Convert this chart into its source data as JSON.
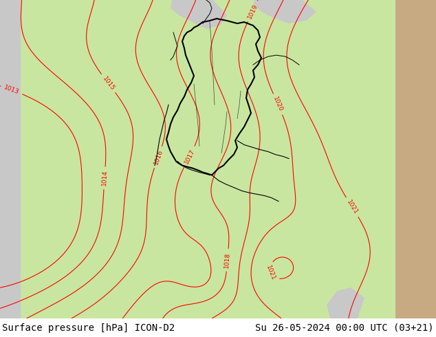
{
  "title_left": "Surface pressure [hPa] ICON-D2",
  "title_right": "Su 26-05-2024 00:00 UTC (03+21)",
  "bg_green": "#c8e6a0",
  "bg_gray": "#c8c8c8",
  "bg_tan": "#c8aa82",
  "bg_white": "#ffffff",
  "contour_color": "#ff0000",
  "border_color": "#000000",
  "text_color": "#000000",
  "water_color": "#b8b8c8",
  "figsize": [
    6.34,
    4.9
  ],
  "dpi": 100,
  "footer_fontsize": 10,
  "label_fontsize": 6.5,
  "border_linewidth": 1.5,
  "contour_linewidth": 0.8
}
